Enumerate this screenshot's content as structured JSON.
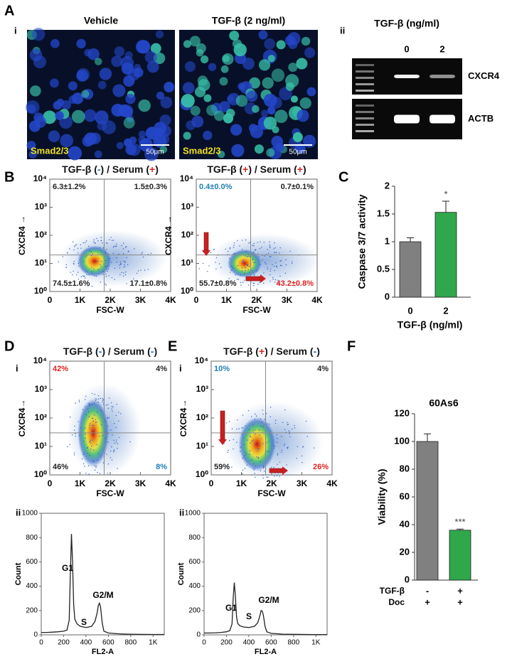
{
  "panel_letters": [
    "A",
    "B",
    "C",
    "D",
    "E",
    "F"
  ],
  "sub_labels": [
    "i",
    "ii"
  ],
  "panel_a": {
    "images": [
      {
        "title": "Vehicle",
        "stain": "Smad2/3",
        "scale_bar": "50μm"
      },
      {
        "title": "TGF-β (2 ng/ml)",
        "stain": "Smad2/3",
        "scale_bar": "50μm"
      }
    ],
    "gel": {
      "title": "TGF-β (ng/ml)",
      "lanes": [
        "0",
        "2"
      ],
      "bands": [
        "CXCR4",
        "ACTB"
      ]
    }
  },
  "chart_data": [
    {
      "type": "scatter",
      "title_parts": [
        {
          "text": "TGF-β ("
        },
        {
          "text": "-",
          "color": "#1f6fb5"
        },
        {
          "text": ") / Serum ("
        },
        {
          "text": "+",
          "color": "#e02020"
        },
        {
          "text": ")"
        }
      ],
      "xlabel": "FSC-W",
      "ylabel": "CXCR4 →",
      "xlim": [
        0,
        4000
      ],
      "xticks": [
        0,
        {
          "value": 1000,
          "label": "1K"
        },
        {
          "value": 2000,
          "label": "2K"
        },
        {
          "value": 3000,
          "label": "3K"
        },
        {
          "value": 4000,
          "label": "4K"
        }
      ],
      "ylim": [
        1,
        10000
      ],
      "log_y": true,
      "yticks": [
        {
          "value": 1,
          "label": "10⁰"
        },
        {
          "value": 10,
          "label": "10¹"
        },
        {
          "value": 100,
          "label": "10²"
        },
        {
          "value": 1000,
          "label": "10³"
        },
        {
          "value": 10000,
          "label": "10⁴"
        }
      ],
      "gate": {
        "x": 1800,
        "y": 20
      },
      "quadrants": [
        {
          "text": "6.3±1.2%",
          "color": "#222222"
        },
        {
          "text": "1.5±0.3%",
          "color": "#222222"
        },
        {
          "text": "74.5±1.6%",
          "color": "#222222"
        },
        {
          "text": "17.1±0.8%",
          "color": "#222222"
        }
      ],
      "arrows": false
    },
    {
      "type": "scatter",
      "title_parts": [
        {
          "text": "TGF-β ("
        },
        {
          "text": "+",
          "color": "#e02020"
        },
        {
          "text": ") / Serum ("
        },
        {
          "text": "+",
          "color": "#e02020"
        },
        {
          "text": ")"
        }
      ],
      "xlabel": "FSC-W",
      "ylabel": "CXCR4 →",
      "xlim": [
        0,
        4000
      ],
      "xticks": [
        0,
        {
          "value": 1000,
          "label": "1K"
        },
        {
          "value": 2000,
          "label": "2K"
        },
        {
          "value": 3000,
          "label": "3K"
        },
        {
          "value": 4000,
          "label": "4K"
        }
      ],
      "ylim": [
        1,
        10000
      ],
      "log_y": true,
      "yticks": [
        {
          "value": 1,
          "label": "10⁰"
        },
        {
          "value": 10,
          "label": "10¹"
        },
        {
          "value": 100,
          "label": "10²"
        },
        {
          "value": 1000,
          "label": "10³"
        },
        {
          "value": 10000,
          "label": "10⁴"
        }
      ],
      "gate": {
        "x": 1800,
        "y": 20
      },
      "quadrants": [
        {
          "text": "0.4±0.0%",
          "color": "#1f7fb5"
        },
        {
          "text": "0.7±0.1%",
          "color": "#222222"
        },
        {
          "text": "55.7±0.8%",
          "color": "#222222"
        },
        {
          "text": "43.2±0.8%",
          "color": "#e02020"
        }
      ],
      "arrows": true
    },
    {
      "type": "bar",
      "categories": [
        "0",
        "2"
      ],
      "values": [
        1.0,
        1.53
      ],
      "errors": [
        0.07,
        0.2
      ],
      "colors": [
        "#808080",
        "#2ea84a"
      ],
      "significance": [
        null,
        "*"
      ],
      "ylim": [
        0,
        2
      ],
      "yticks": [
        0,
        0.5,
        1,
        1.5,
        2
      ],
      "ylabel": "Caspase 3/7 activity",
      "xlabel": "TGF-β (ng/ml)"
    },
    {
      "type": "scatter",
      "title_parts": [
        {
          "text": "TGF-β ("
        },
        {
          "text": "-",
          "color": "#1f6fb5"
        },
        {
          "text": ") / Serum ("
        },
        {
          "text": "-",
          "color": "#1f6fb5"
        },
        {
          "text": ")"
        }
      ],
      "xlabel": "FSC-W",
      "ylabel": "CXCR4→",
      "xlim": [
        0,
        4000
      ],
      "xticks": [
        0,
        {
          "value": 1000,
          "label": "1K"
        },
        {
          "value": 2000,
          "label": "2K"
        },
        {
          "value": 3000,
          "label": "3K"
        },
        {
          "value": 4000,
          "label": "4K"
        }
      ],
      "ylim": [
        1,
        10000
      ],
      "log_y": true,
      "yticks": [
        {
          "value": 1,
          "label": "10⁰"
        },
        {
          "value": 10,
          "label": "10¹"
        },
        {
          "value": 100,
          "label": "10²"
        },
        {
          "value": 1000,
          "label": "10³"
        },
        {
          "value": 10000,
          "label": "10⁴"
        }
      ],
      "gate": {
        "x": 1800,
        "y": 30
      },
      "quadrants": [
        {
          "text": "42%",
          "color": "#e02020"
        },
        {
          "text": "4%",
          "color": "#222222"
        },
        {
          "text": "46%",
          "color": "#222222"
        },
        {
          "text": "8%",
          "color": "#1f7fb5"
        }
      ],
      "arrows": false
    },
    {
      "type": "scatter",
      "title_parts": [
        {
          "text": "TGF-β ("
        },
        {
          "text": "+",
          "color": "#e02020"
        },
        {
          "text": ") / Serum ("
        },
        {
          "text": "-",
          "color": "#1f6fb5"
        },
        {
          "text": ")"
        }
      ],
      "xlabel": "FSC-W",
      "ylabel": "CXCR4→",
      "xlim": [
        0,
        4000
      ],
      "xticks": [
        0,
        {
          "value": 1000,
          "label": "1K"
        },
        {
          "value": 2000,
          "label": "2K"
        },
        {
          "value": 3000,
          "label": "3K"
        },
        {
          "value": 4000,
          "label": "4K"
        }
      ],
      "ylim": [
        1,
        10000
      ],
      "log_y": true,
      "yticks": [
        {
          "value": 1,
          "label": "10⁰"
        },
        {
          "value": 10,
          "label": "10¹"
        },
        {
          "value": 100,
          "label": "10²"
        },
        {
          "value": 1000,
          "label": "10³"
        },
        {
          "value": 10000,
          "label": "10⁴"
        }
      ],
      "gate": {
        "x": 1800,
        "y": 30
      },
      "quadrants": [
        {
          "text": "10%",
          "color": "#1f7fb5"
        },
        {
          "text": "4%",
          "color": "#222222"
        },
        {
          "text": "59%",
          "color": "#222222"
        },
        {
          "text": "26%",
          "color": "#e02020"
        }
      ],
      "arrows": true
    },
    {
      "type": "bar",
      "title": "60As6",
      "values": [
        100,
        36
      ],
      "errors": [
        5.5,
        0.8
      ],
      "colors": [
        "#808080",
        "#2ea84a"
      ],
      "significance": [
        null,
        "***"
      ],
      "condition_rows": [
        {
          "name": "TGF-β",
          "values": [
            "-",
            "+"
          ]
        },
        {
          "name": "Doc",
          "values": [
            "+",
            "+"
          ]
        }
      ],
      "ylim": [
        0,
        120
      ],
      "yticks": [
        0,
        20,
        40,
        60,
        80,
        100,
        120
      ],
      "ylabel": "Viability (%)"
    },
    {
      "type": "line",
      "x": [
        0,
        50,
        100,
        150,
        200,
        230,
        250,
        260,
        270,
        280,
        290,
        300,
        320,
        350,
        400,
        450,
        480,
        500,
        510,
        520,
        530,
        545,
        560,
        600,
        700,
        800,
        1000,
        1100
      ],
      "values": [
        20,
        20,
        22,
        25,
        30,
        40,
        120,
        500,
        830,
        600,
        250,
        130,
        90,
        70,
        60,
        70,
        110,
        180,
        240,
        260,
        230,
        100,
        30,
        15,
        8,
        5,
        3,
        3
      ],
      "xlim": [
        0,
        1100
      ],
      "xticks": [
        0,
        200,
        400,
        600,
        800,
        {
          "value": 1000,
          "label": "1K"
        }
      ],
      "ylim": [
        0,
        1000
      ],
      "yticks": [
        0,
        200,
        400,
        600,
        800,
        1000
      ],
      "xlabel": "FL2-A",
      "ylabel": "Count",
      "annotations": [
        "G1",
        "S",
        "G2/M"
      ]
    },
    {
      "type": "line",
      "x": [
        0,
        50,
        100,
        150,
        200,
        230,
        250,
        260,
        270,
        280,
        290,
        300,
        320,
        350,
        400,
        450,
        480,
        500,
        510,
        520,
        530,
        545,
        560,
        600,
        700,
        800,
        1000,
        1100
      ],
      "values": [
        15,
        15,
        17,
        20,
        25,
        35,
        90,
        300,
        430,
        320,
        150,
        95,
        75,
        65,
        60,
        70,
        100,
        160,
        200,
        195,
        160,
        70,
        25,
        12,
        6,
        4,
        2,
        2
      ],
      "xlim": [
        0,
        1100
      ],
      "xticks": [
        0,
        200,
        400,
        600,
        800,
        {
          "value": 1000,
          "label": "1K"
        }
      ],
      "ylim": [
        0,
        1000
      ],
      "yticks": [
        0,
        200,
        400,
        600,
        800,
        1000
      ],
      "xlabel": "FL2-A",
      "ylabel": "Count",
      "annotations": [
        "G1",
        "S",
        "G2/M"
      ]
    }
  ]
}
